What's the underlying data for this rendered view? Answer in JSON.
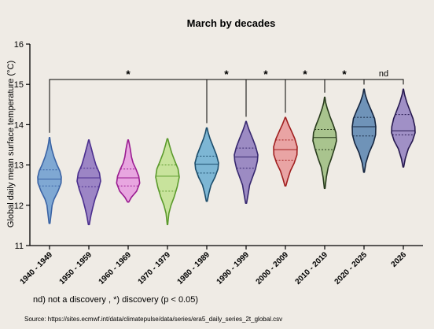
{
  "chart_data": {
    "type": "violin",
    "title": "March by decades",
    "ylabel": "Global daily mean surface temperature (°C)",
    "xlabel": "",
    "ylim": [
      11,
      16
    ],
    "yticks": [
      11,
      12,
      13,
      14,
      15,
      16
    ],
    "grid": false,
    "categories": [
      "1940 - 1949",
      "1950 - 1959",
      "1960 - 1969",
      "1970 - 1979",
      "1980 - 1989",
      "1990 - 1999",
      "2000 - 2009",
      "2010 - 2019",
      "2020 - 2025",
      "2026"
    ],
    "series": [
      {
        "category": "1940 - 1949",
        "fill": "#7fa8d3",
        "stroke": "#3a63a4",
        "min": 11.55,
        "max": 13.68,
        "q1": 12.48,
        "median": 12.65,
        "q3": 12.88,
        "profile": [
          [
            11.55,
            0.04
          ],
          [
            11.75,
            0.12
          ],
          [
            12.0,
            0.22
          ],
          [
            12.15,
            0.38
          ],
          [
            12.35,
            0.72
          ],
          [
            12.55,
            0.98
          ],
          [
            12.7,
            1.0
          ],
          [
            12.85,
            0.88
          ],
          [
            13.0,
            0.64
          ],
          [
            13.2,
            0.38
          ],
          [
            13.4,
            0.18
          ],
          [
            13.55,
            0.08
          ],
          [
            13.68,
            0.02
          ]
        ]
      },
      {
        "category": "1950 - 1959",
        "fill": "#9c85c5",
        "stroke": "#4b2f8e",
        "min": 11.52,
        "max": 13.62,
        "q1": 12.46,
        "median": 12.68,
        "q3": 12.92,
        "profile": [
          [
            11.52,
            0.04
          ],
          [
            11.75,
            0.18
          ],
          [
            11.95,
            0.34
          ],
          [
            12.15,
            0.52
          ],
          [
            12.4,
            0.82
          ],
          [
            12.6,
            1.0
          ],
          [
            12.8,
            0.9
          ],
          [
            13.0,
            0.6
          ],
          [
            13.2,
            0.4
          ],
          [
            13.4,
            0.22
          ],
          [
            13.55,
            0.08
          ],
          [
            13.62,
            0.02
          ]
        ]
      },
      {
        "category": "1960 - 1969",
        "fill": "#e8a6e0",
        "stroke": "#9a1c91",
        "min": 12.08,
        "max": 13.62,
        "q1": 12.48,
        "median": 12.68,
        "q3": 12.9,
        "profile": [
          [
            12.08,
            0.05
          ],
          [
            12.2,
            0.28
          ],
          [
            12.35,
            0.72
          ],
          [
            12.55,
            0.98
          ],
          [
            12.72,
            0.9
          ],
          [
            12.9,
            0.66
          ],
          [
            13.05,
            0.42
          ],
          [
            13.2,
            0.28
          ],
          [
            13.4,
            0.18
          ],
          [
            13.55,
            0.08
          ],
          [
            13.62,
            0.02
          ]
        ]
      },
      {
        "category": "1970 - 1979",
        "fill": "#c8e39c",
        "stroke": "#5b9a2c",
        "min": 11.52,
        "max": 13.65,
        "q1": 12.35,
        "median": 12.72,
        "q3": 13.0,
        "profile": [
          [
            11.52,
            0.02
          ],
          [
            11.8,
            0.12
          ],
          [
            12.0,
            0.3
          ],
          [
            12.2,
            0.56
          ],
          [
            12.45,
            0.82
          ],
          [
            12.7,
            1.0
          ],
          [
            12.9,
            0.9
          ],
          [
            13.1,
            0.62
          ],
          [
            13.3,
            0.36
          ],
          [
            13.5,
            0.16
          ],
          [
            13.65,
            0.03
          ]
        ]
      },
      {
        "category": "1980 - 1989",
        "fill": "#7db6d4",
        "stroke": "#1c4d6b",
        "min": 12.1,
        "max": 13.92,
        "q1": 12.8,
        "median": 13.02,
        "q3": 13.22,
        "profile": [
          [
            12.1,
            0.04
          ],
          [
            12.3,
            0.18
          ],
          [
            12.5,
            0.36
          ],
          [
            12.7,
            0.7
          ],
          [
            12.9,
            0.95
          ],
          [
            13.05,
            1.0
          ],
          [
            13.25,
            0.82
          ],
          [
            13.45,
            0.55
          ],
          [
            13.65,
            0.28
          ],
          [
            13.8,
            0.12
          ],
          [
            13.92,
            0.03
          ]
        ]
      },
      {
        "category": "1990 - 1999",
        "fill": "#9c8bc3",
        "stroke": "#37286f",
        "min": 12.05,
        "max": 14.08,
        "q1": 12.92,
        "median": 13.2,
        "q3": 13.42,
        "profile": [
          [
            12.05,
            0.04
          ],
          [
            12.25,
            0.16
          ],
          [
            12.5,
            0.3
          ],
          [
            12.7,
            0.55
          ],
          [
            12.9,
            0.8
          ],
          [
            13.1,
            0.96
          ],
          [
            13.25,
            1.0
          ],
          [
            13.45,
            0.82
          ],
          [
            13.65,
            0.56
          ],
          [
            13.85,
            0.28
          ],
          [
            14.0,
            0.1
          ],
          [
            14.08,
            0.02
          ]
        ]
      },
      {
        "category": "2000 - 2009",
        "fill": "#e9a4a4",
        "stroke": "#a01f1f",
        "min": 12.48,
        "max": 14.18,
        "q1": 13.12,
        "median": 13.38,
        "q3": 13.62,
        "profile": [
          [
            12.48,
            0.04
          ],
          [
            12.65,
            0.2
          ],
          [
            12.85,
            0.42
          ],
          [
            13.05,
            0.75
          ],
          [
            13.25,
            0.98
          ],
          [
            13.45,
            1.0
          ],
          [
            13.65,
            0.8
          ],
          [
            13.85,
            0.5
          ],
          [
            14.0,
            0.26
          ],
          [
            14.12,
            0.1
          ],
          [
            14.18,
            0.02
          ]
        ]
      },
      {
        "category": "2010 - 2019",
        "fill": "#a9c48e",
        "stroke": "#283b1c",
        "min": 12.42,
        "max": 14.68,
        "q1": 13.38,
        "median": 13.68,
        "q3": 13.88,
        "profile": [
          [
            12.42,
            0.03
          ],
          [
            12.7,
            0.14
          ],
          [
            12.95,
            0.3
          ],
          [
            13.15,
            0.55
          ],
          [
            13.4,
            0.82
          ],
          [
            13.6,
            1.0
          ],
          [
            13.8,
            0.95
          ],
          [
            14.0,
            0.72
          ],
          [
            14.2,
            0.45
          ],
          [
            14.4,
            0.22
          ],
          [
            14.55,
            0.08
          ],
          [
            14.68,
            0.02
          ]
        ]
      },
      {
        "category": "2020 - 2025",
        "fill": "#6f93b8",
        "stroke": "#15253f",
        "min": 12.82,
        "max": 14.88,
        "q1": 13.72,
        "median": 13.95,
        "q3": 14.18,
        "profile": [
          [
            12.82,
            0.03
          ],
          [
            13.05,
            0.16
          ],
          [
            13.3,
            0.42
          ],
          [
            13.55,
            0.8
          ],
          [
            13.75,
            0.98
          ],
          [
            13.95,
            1.0
          ],
          [
            14.15,
            0.9
          ],
          [
            14.35,
            0.62
          ],
          [
            14.55,
            0.32
          ],
          [
            14.75,
            0.1
          ],
          [
            14.88,
            0.02
          ]
        ]
      },
      {
        "category": "2026",
        "fill": "#a090c6",
        "stroke": "#26184f",
        "min": 12.95,
        "max": 14.88,
        "q1": 13.75,
        "median": 13.85,
        "q3": 14.25,
        "profile": [
          [
            12.95,
            0.03
          ],
          [
            13.15,
            0.16
          ],
          [
            13.4,
            0.42
          ],
          [
            13.6,
            0.78
          ],
          [
            13.8,
            1.0
          ],
          [
            13.95,
            0.98
          ],
          [
            14.15,
            0.82
          ],
          [
            14.35,
            0.56
          ],
          [
            14.55,
            0.3
          ],
          [
            14.75,
            0.1
          ],
          [
            14.88,
            0.02
          ]
        ]
      }
    ],
    "annotations": [
      {
        "from": "1940 - 1949",
        "to": "1980 - 1989",
        "y": 15.12,
        "text": "*"
      },
      {
        "from": "1980 - 1989",
        "to": "1990 - 1999",
        "y": 15.12,
        "text": "*"
      },
      {
        "from": "1990 - 1999",
        "to": "2000 - 2009",
        "y": 15.12,
        "text": "*"
      },
      {
        "from": "2000 - 2009",
        "to": "2010 - 2019",
        "y": 15.12,
        "text": "*"
      },
      {
        "from": "2010 - 2019",
        "to": "2020 - 2025",
        "y": 15.12,
        "text": "*"
      },
      {
        "from": "2020 - 2025",
        "to": "2026",
        "y": 15.12,
        "text": "nd"
      }
    ]
  },
  "footnote": "nd) not a discovery , *) discovery (p < 0.05)",
  "source": "Source: https://sites.ecmwf.int/data/climatepulse/data/series/era5_daily_series_2t_global.csv"
}
